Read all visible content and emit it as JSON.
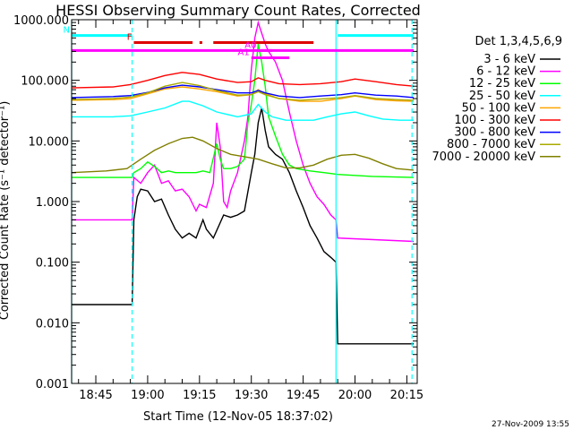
{
  "chart_data": {
    "type": "line",
    "title": "HESSI Observing Summary Count Rates, Corrected",
    "xlabel": "Start Time (12-Nov-05 18:37:02)",
    "ylabel": "Corrected Count Rate (s⁻¹ detector⁻¹)",
    "ylog": true,
    "ylim": [
      0.001,
      1000
    ],
    "xlim_minutes": [
      38,
      138
    ],
    "yticks": [
      "1000.000",
      "100.000",
      "10.000",
      "1.000",
      "0.100",
      "0.010",
      "0.001"
    ],
    "xticks": [
      "18:45",
      "19:00",
      "19:15",
      "19:30",
      "19:45",
      "20:00",
      "20:15"
    ],
    "legend_title": "Det 1,3,4,5,6,9",
    "legend_position": "right",
    "date_stamp": "27-Nov-2009 13:55",
    "series": [
      {
        "name": "3 - 6 keV",
        "color": "#000000",
        "points": [
          [
            38,
            0.02
          ],
          [
            55.5,
            0.02
          ],
          [
            56,
            0.5
          ],
          [
            57,
            1.2
          ],
          [
            58,
            1.6
          ],
          [
            60,
            1.5
          ],
          [
            62,
            1.0
          ],
          [
            64,
            1.1
          ],
          [
            66,
            0.6
          ],
          [
            68,
            0.35
          ],
          [
            70,
            0.25
          ],
          [
            72,
            0.3
          ],
          [
            74,
            0.25
          ],
          [
            76,
            0.5
          ],
          [
            77,
            0.35
          ],
          [
            79,
            0.25
          ],
          [
            82,
            0.6
          ],
          [
            84,
            0.55
          ],
          [
            86,
            0.6
          ],
          [
            88,
            0.7
          ],
          [
            90,
            3
          ],
          [
            91,
            6
          ],
          [
            92,
            20
          ],
          [
            93,
            35
          ],
          [
            94,
            15
          ],
          [
            95,
            8
          ],
          [
            97,
            6
          ],
          [
            99,
            5
          ],
          [
            101,
            3
          ],
          [
            103,
            1.5
          ],
          [
            105,
            0.8
          ],
          [
            107,
            0.4
          ],
          [
            109,
            0.25
          ],
          [
            111,
            0.15
          ],
          [
            113,
            0.12
          ],
          [
            114.5,
            0.1
          ],
          [
            115,
            0.0045
          ],
          [
            137,
            0.0045
          ]
        ]
      },
      {
        "name": "6 - 12 keV",
        "color": "#ff00ff",
        "points": [
          [
            38,
            0.5
          ],
          [
            55.5,
            0.5
          ],
          [
            56,
            2.5
          ],
          [
            58,
            2.0
          ],
          [
            60,
            3.0
          ],
          [
            62,
            4.0
          ],
          [
            64,
            2.0
          ],
          [
            66,
            2.2
          ],
          [
            68,
            1.5
          ],
          [
            70,
            1.6
          ],
          [
            72,
            1.2
          ],
          [
            74,
            0.7
          ],
          [
            75,
            0.9
          ],
          [
            77,
            0.8
          ],
          [
            79,
            2.0
          ],
          [
            80,
            20
          ],
          [
            81,
            8
          ],
          [
            82,
            1.0
          ],
          [
            83,
            0.8
          ],
          [
            84,
            1.5
          ],
          [
            86,
            3.0
          ],
          [
            88,
            10
          ],
          [
            89,
            25
          ],
          [
            90,
            150
          ],
          [
            91,
            500
          ],
          [
            92,
            900
          ],
          [
            93,
            600
          ],
          [
            94,
            400
          ],
          [
            95,
            300
          ],
          [
            97,
            200
          ],
          [
            99,
            100
          ],
          [
            101,
            30
          ],
          [
            103,
            10
          ],
          [
            105,
            4
          ],
          [
            107,
            2
          ],
          [
            109,
            1.2
          ],
          [
            111,
            0.9
          ],
          [
            113,
            0.6
          ],
          [
            114.5,
            0.5
          ],
          [
            115,
            0.25
          ],
          [
            137,
            0.22
          ]
        ]
      },
      {
        "name": "12 - 25 keV",
        "color": "#00ff00",
        "points": [
          [
            38,
            2.5
          ],
          [
            55.5,
            2.5
          ],
          [
            56,
            3.0
          ],
          [
            58,
            3.5
          ],
          [
            60,
            4.5
          ],
          [
            62,
            3.8
          ],
          [
            64,
            3.0
          ],
          [
            66,
            3.2
          ],
          [
            68,
            3.0
          ],
          [
            70,
            3.0
          ],
          [
            72,
            3.0
          ],
          [
            74,
            3.0
          ],
          [
            76,
            3.2
          ],
          [
            78,
            3.0
          ],
          [
            80,
            9
          ],
          [
            81,
            5
          ],
          [
            82,
            3.5
          ],
          [
            84,
            3.5
          ],
          [
            86,
            3.8
          ],
          [
            88,
            5
          ],
          [
            89,
            20
          ],
          [
            90,
            40
          ],
          [
            91,
            100
          ],
          [
            92,
            400
          ],
          [
            93,
            200
          ],
          [
            94,
            80
          ],
          [
            95,
            25
          ],
          [
            97,
            12
          ],
          [
            99,
            6
          ],
          [
            101,
            4
          ],
          [
            103,
            3.5
          ],
          [
            107,
            3.2
          ],
          [
            111,
            3.0
          ],
          [
            115,
            2.8
          ],
          [
            125,
            2.6
          ],
          [
            137,
            2.5
          ]
        ]
      },
      {
        "name": "25 - 50 keV",
        "color": "#00ffff",
        "points": [
          [
            38,
            25
          ],
          [
            50,
            25
          ],
          [
            55,
            26
          ],
          [
            60,
            30
          ],
          [
            65,
            35
          ],
          [
            70,
            45
          ],
          [
            72,
            45
          ],
          [
            76,
            38
          ],
          [
            80,
            30
          ],
          [
            86,
            25
          ],
          [
            90,
            28
          ],
          [
            92,
            40
          ],
          [
            94,
            30
          ],
          [
            96,
            25
          ],
          [
            100,
            22
          ],
          [
            104,
            22
          ],
          [
            108,
            22
          ],
          [
            112,
            25
          ],
          [
            116,
            28
          ],
          [
            120,
            30
          ],
          [
            124,
            26
          ],
          [
            128,
            23
          ],
          [
            133,
            22
          ],
          [
            137,
            22
          ]
        ]
      },
      {
        "name": "50 - 100 keV",
        "color": "#ffa500",
        "points": [
          [
            38,
            47
          ],
          [
            50,
            48
          ],
          [
            55,
            50
          ],
          [
            60,
            60
          ],
          [
            65,
            72
          ],
          [
            70,
            78
          ],
          [
            75,
            72
          ],
          [
            80,
            65
          ],
          [
            86,
            55
          ],
          [
            90,
            58
          ],
          [
            92,
            70
          ],
          [
            94,
            60
          ],
          [
            98,
            50
          ],
          [
            104,
            45
          ],
          [
            110,
            45
          ],
          [
            116,
            50
          ],
          [
            120,
            55
          ],
          [
            126,
            48
          ],
          [
            132,
            46
          ],
          [
            137,
            45
          ]
        ]
      },
      {
        "name": "100 - 300 keV",
        "color": "#ff0000",
        "points": [
          [
            38,
            75
          ],
          [
            50,
            78
          ],
          [
            55,
            85
          ],
          [
            60,
            100
          ],
          [
            65,
            120
          ],
          [
            70,
            135
          ],
          [
            75,
            125
          ],
          [
            80,
            105
          ],
          [
            86,
            92
          ],
          [
            90,
            95
          ],
          [
            92,
            110
          ],
          [
            94,
            100
          ],
          [
            98,
            88
          ],
          [
            104,
            85
          ],
          [
            110,
            88
          ],
          [
            116,
            95
          ],
          [
            120,
            105
          ],
          [
            126,
            95
          ],
          [
            132,
            85
          ],
          [
            137,
            80
          ]
        ]
      },
      {
        "name": "300 - 800 keV",
        "color": "#0000ff",
        "points": [
          [
            38,
            52
          ],
          [
            50,
            54
          ],
          [
            55,
            56
          ],
          [
            60,
            63
          ],
          [
            65,
            75
          ],
          [
            70,
            83
          ],
          [
            75,
            78
          ],
          [
            80,
            70
          ],
          [
            86,
            62
          ],
          [
            90,
            62
          ],
          [
            92,
            68
          ],
          [
            94,
            62
          ],
          [
            98,
            55
          ],
          [
            104,
            52
          ],
          [
            110,
            55
          ],
          [
            116,
            58
          ],
          [
            120,
            62
          ],
          [
            126,
            57
          ],
          [
            132,
            55
          ],
          [
            137,
            52
          ]
        ]
      },
      {
        "name": "800 - 7000 keV",
        "color": "#aaaa00",
        "points": [
          [
            38,
            48
          ],
          [
            50,
            50
          ],
          [
            55,
            53
          ],
          [
            60,
            62
          ],
          [
            65,
            80
          ],
          [
            70,
            92
          ],
          [
            75,
            82
          ],
          [
            80,
            68
          ],
          [
            86,
            57
          ],
          [
            90,
            58
          ],
          [
            92,
            65
          ],
          [
            94,
            58
          ],
          [
            98,
            50
          ],
          [
            104,
            47
          ],
          [
            110,
            49
          ],
          [
            116,
            52
          ],
          [
            120,
            56
          ],
          [
            126,
            50
          ],
          [
            132,
            48
          ],
          [
            137,
            47
          ]
        ]
      },
      {
        "name": "7000 - 20000 keV",
        "color": "#808000",
        "points": [
          [
            38,
            3
          ],
          [
            48,
            3.2
          ],
          [
            54,
            3.5
          ],
          [
            58,
            5
          ],
          [
            62,
            7
          ],
          [
            66,
            9
          ],
          [
            70,
            11
          ],
          [
            73,
            11.5
          ],
          [
            76,
            10
          ],
          [
            80,
            7.5
          ],
          [
            84,
            6
          ],
          [
            88,
            5.5
          ],
          [
            92,
            5
          ],
          [
            96,
            4.2
          ],
          [
            100,
            3.6
          ],
          [
            104,
            3.6
          ],
          [
            108,
            4.0
          ],
          [
            112,
            5.0
          ],
          [
            116,
            5.8
          ],
          [
            120,
            6.0
          ],
          [
            124,
            5.2
          ],
          [
            128,
            4.2
          ],
          [
            132,
            3.5
          ],
          [
            137,
            3.3
          ]
        ]
      }
    ],
    "flag_bars": [
      {
        "label": "N",
        "color": "#00ffff",
        "segments": [
          [
            38,
            55.5
          ],
          [
            115,
            137
          ]
        ],
        "level": 550
      },
      {
        "label": "F",
        "color": "#dd0000",
        "segments": [
          [
            56,
            73
          ],
          [
            75,
            75.8
          ],
          [
            79,
            108
          ]
        ],
        "level": 420
      },
      {
        "label": "",
        "color": "#ff00ff",
        "segments": [
          [
            38,
            137
          ]
        ],
        "level": 310
      },
      {
        "label": "A0",
        "color": "#ff00ff",
        "segments": [
          [
            92,
            96
          ]
        ],
        "level": 310
      },
      {
        "label": "A1",
        "color": "#ff00ff",
        "segments": [
          [
            90,
            101
          ]
        ],
        "level": 235
      }
    ],
    "vertical_lines": [
      {
        "x": 38,
        "style": "solid",
        "color": "#00ffff"
      },
      {
        "x": 55.5,
        "style": "dashed",
        "color": "#00ffff"
      },
      {
        "x": 114.5,
        "style": "solid",
        "color": "#00ffff"
      },
      {
        "x": 136.5,
        "style": "dashed",
        "color": "#00ffff"
      }
    ]
  }
}
